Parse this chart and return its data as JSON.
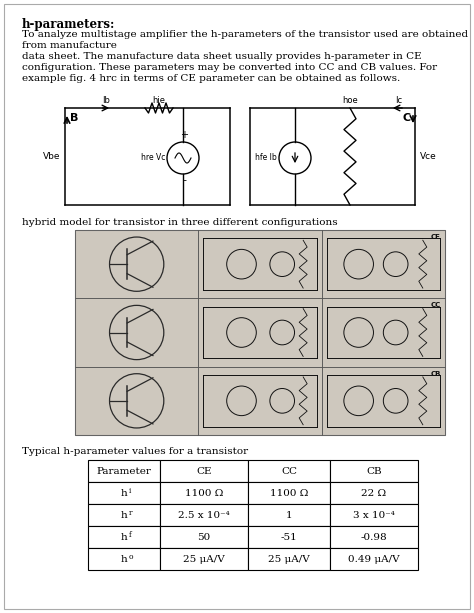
{
  "title": "h-parameters:",
  "body_text": [
    "To analyze multistage amplifier the h-parameters of the transistor used are obtained",
    "from manufacture",
    "data sheet. The manufacture data sheet usually provides h-parameter in CE",
    "configuration. These parameters may be converted into CC and CB values. For",
    "example fig. 4 hrc in terms of CE parameter can be obtained as follows."
  ],
  "circuit_label": "hybrid model for transistor in three different configurations",
  "table_label": "Typical h-parameter values for a transistor",
  "table_headers": [
    "Parameter",
    "CE",
    "CC",
    "CB"
  ],
  "table_rows": [
    [
      "hi",
      "1100 Ω",
      "1100 Ω",
      "22 Ω"
    ],
    [
      "hr",
      "2.5 x 10⁻⁴",
      "1",
      "3 x 10⁻⁴"
    ],
    [
      "hf",
      "50",
      "-51",
      "-0.98"
    ],
    [
      "ho",
      "25 μA/V",
      "25 μA/V",
      "0.49 μA/V"
    ]
  ],
  "table_row_labels": [
    "hi",
    "hr",
    "hf",
    "ho"
  ],
  "background_color": "#ffffff",
  "text_color": "#000000",
  "border_color": "#cccccc",
  "fig_width": 4.74,
  "fig_height": 6.13
}
